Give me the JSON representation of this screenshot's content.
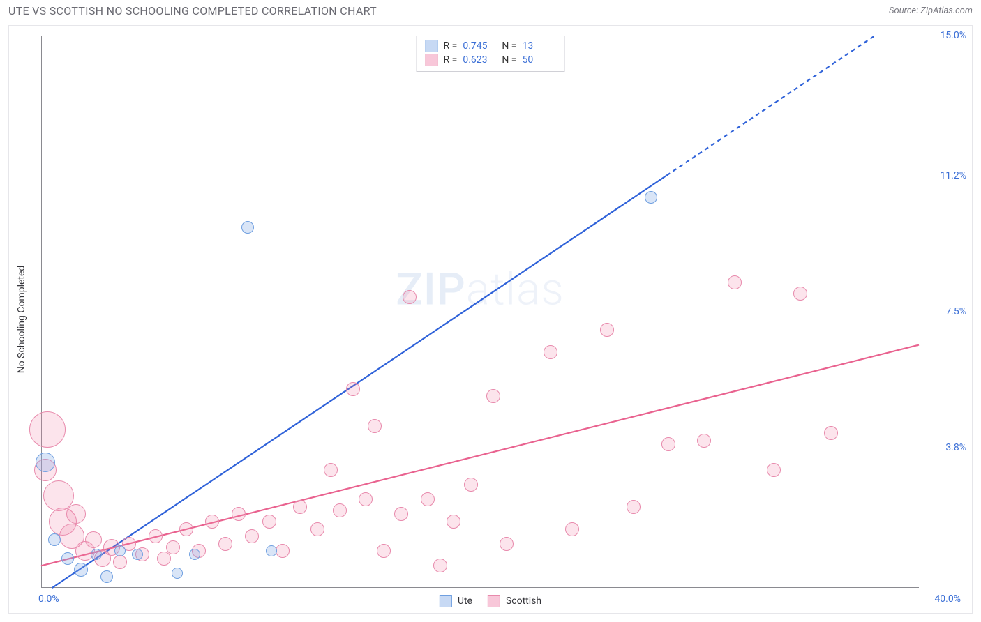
{
  "header": {
    "title": "UTE VS SCOTTISH NO SCHOOLING COMPLETED CORRELATION CHART",
    "source": "Source: ZipAtlas.com"
  },
  "watermark": {
    "bold": "ZIP",
    "thin": "atlas"
  },
  "chart": {
    "type": "scatter",
    "y_axis_title": "No Schooling Completed",
    "x_axis_title": "",
    "background_color": "#ffffff",
    "grid_color": "#dcdce2",
    "axis_color": "#8a8a90",
    "label_color": "#3b6fd6",
    "text_color": "#333338",
    "xlim": [
      0,
      40
    ],
    "ylim": [
      0,
      15
    ],
    "x_min_label": "0.0%",
    "x_max_label": "40.0%",
    "y_ticks": [
      {
        "value": 3.8,
        "label": "3.8%"
      },
      {
        "value": 7.5,
        "label": "7.5%"
      },
      {
        "value": 11.2,
        "label": "11.2%"
      },
      {
        "value": 15.0,
        "label": "15.0%"
      }
    ],
    "series": {
      "ute": {
        "label": "Ute",
        "color_fill": "rgba(130,170,230,0.30)",
        "color_stroke": "#6f9fe0",
        "r_label": "R =",
        "r_value": "0.745",
        "n_label": "N =",
        "n_value": "13",
        "trend": {
          "color": "#2f62d9",
          "width": 2.2,
          "x1": 0.5,
          "y1": 0.0,
          "x2": 28.5,
          "y2": 11.2,
          "dash_x2": 38.0,
          "dash_y2": 15.0
        },
        "points": [
          {
            "x": 0.2,
            "y": 3.4,
            "r": 14
          },
          {
            "x": 0.6,
            "y": 1.3,
            "r": 9
          },
          {
            "x": 1.2,
            "y": 0.8,
            "r": 9
          },
          {
            "x": 1.8,
            "y": 0.5,
            "r": 10
          },
          {
            "x": 2.5,
            "y": 0.9,
            "r": 8
          },
          {
            "x": 3.0,
            "y": 0.3,
            "r": 9
          },
          {
            "x": 3.6,
            "y": 1.0,
            "r": 8
          },
          {
            "x": 4.4,
            "y": 0.9,
            "r": 8
          },
          {
            "x": 6.2,
            "y": 0.4,
            "r": 8
          },
          {
            "x": 7.0,
            "y": 0.9,
            "r": 8
          },
          {
            "x": 9.4,
            "y": 9.8,
            "r": 9
          },
          {
            "x": 10.5,
            "y": 1.0,
            "r": 8
          },
          {
            "x": 27.8,
            "y": 10.6,
            "r": 9
          }
        ]
      },
      "scottish": {
        "label": "Scottish",
        "color_fill": "rgba(240,130,170,0.22)",
        "color_stroke": "#e88aac",
        "r_label": "R =",
        "r_value": "0.623",
        "n_label": "N =",
        "n_value": "50",
        "trend": {
          "color": "#e9628f",
          "width": 2.2,
          "x1": 0.0,
          "y1": 0.6,
          "x2": 40.0,
          "y2": 6.6
        },
        "points": [
          {
            "x": 0.3,
            "y": 4.3,
            "r": 26
          },
          {
            "x": 0.2,
            "y": 3.2,
            "r": 16
          },
          {
            "x": 0.8,
            "y": 2.5,
            "r": 22
          },
          {
            "x": 1.0,
            "y": 1.8,
            "r": 20
          },
          {
            "x": 1.4,
            "y": 1.4,
            "r": 18
          },
          {
            "x": 1.6,
            "y": 2.0,
            "r": 14
          },
          {
            "x": 2.0,
            "y": 1.0,
            "r": 14
          },
          {
            "x": 2.4,
            "y": 1.3,
            "r": 12
          },
          {
            "x": 2.8,
            "y": 0.8,
            "r": 12
          },
          {
            "x": 3.2,
            "y": 1.1,
            "r": 12
          },
          {
            "x": 3.6,
            "y": 0.7,
            "r": 10
          },
          {
            "x": 4.0,
            "y": 1.2,
            "r": 10
          },
          {
            "x": 4.6,
            "y": 0.9,
            "r": 10
          },
          {
            "x": 5.2,
            "y": 1.4,
            "r": 10
          },
          {
            "x": 5.6,
            "y": 0.8,
            "r": 10
          },
          {
            "x": 6.0,
            "y": 1.1,
            "r": 10
          },
          {
            "x": 6.6,
            "y": 1.6,
            "r": 10
          },
          {
            "x": 7.2,
            "y": 1.0,
            "r": 10
          },
          {
            "x": 7.8,
            "y": 1.8,
            "r": 10
          },
          {
            "x": 8.4,
            "y": 1.2,
            "r": 10
          },
          {
            "x": 9.0,
            "y": 2.0,
            "r": 10
          },
          {
            "x": 9.6,
            "y": 1.4,
            "r": 10
          },
          {
            "x": 10.4,
            "y": 1.8,
            "r": 10
          },
          {
            "x": 11.0,
            "y": 1.0,
            "r": 10
          },
          {
            "x": 11.8,
            "y": 2.2,
            "r": 10
          },
          {
            "x": 12.6,
            "y": 1.6,
            "r": 10
          },
          {
            "x": 13.2,
            "y": 3.2,
            "r": 10
          },
          {
            "x": 13.6,
            "y": 2.1,
            "r": 10
          },
          {
            "x": 14.2,
            "y": 5.4,
            "r": 10
          },
          {
            "x": 14.8,
            "y": 2.4,
            "r": 10
          },
          {
            "x": 15.2,
            "y": 4.4,
            "r": 10
          },
          {
            "x": 15.6,
            "y": 1.0,
            "r": 10
          },
          {
            "x": 16.4,
            "y": 2.0,
            "r": 10
          },
          {
            "x": 16.8,
            "y": 7.9,
            "r": 10
          },
          {
            "x": 17.6,
            "y": 2.4,
            "r": 10
          },
          {
            "x": 18.2,
            "y": 0.6,
            "r": 10
          },
          {
            "x": 18.8,
            "y": 1.8,
            "r": 10
          },
          {
            "x": 19.6,
            "y": 2.8,
            "r": 10
          },
          {
            "x": 20.6,
            "y": 5.2,
            "r": 10
          },
          {
            "x": 21.2,
            "y": 1.2,
            "r": 10
          },
          {
            "x": 23.2,
            "y": 6.4,
            "r": 10
          },
          {
            "x": 24.2,
            "y": 1.6,
            "r": 10
          },
          {
            "x": 25.8,
            "y": 7.0,
            "r": 10
          },
          {
            "x": 27.0,
            "y": 2.2,
            "r": 10
          },
          {
            "x": 28.6,
            "y": 3.9,
            "r": 10
          },
          {
            "x": 30.2,
            "y": 4.0,
            "r": 10
          },
          {
            "x": 31.6,
            "y": 8.3,
            "r": 10
          },
          {
            "x": 33.4,
            "y": 3.2,
            "r": 10
          },
          {
            "x": 34.6,
            "y": 8.0,
            "r": 10
          },
          {
            "x": 36.0,
            "y": 4.2,
            "r": 10
          }
        ]
      }
    }
  }
}
